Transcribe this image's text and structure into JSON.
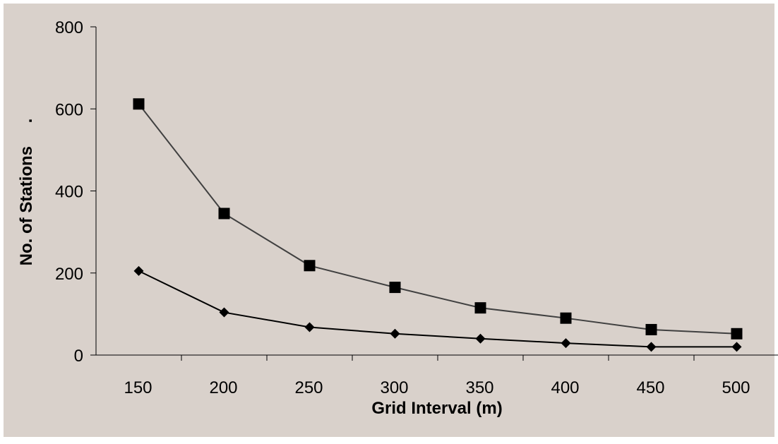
{
  "chart_data": {
    "type": "line",
    "title": "",
    "xlabel": "Grid Interval (m)",
    "ylabel": "No. of Stations",
    "ylabel_suffix": ".",
    "categories": [
      "150",
      "200",
      "250",
      "300",
      "350",
      "400",
      "450",
      "500"
    ],
    "x": [
      150,
      200,
      250,
      300,
      350,
      400,
      450,
      500
    ],
    "ylim": [
      0,
      800
    ],
    "yticks": [
      "0",
      "200",
      "400",
      "600",
      "800"
    ],
    "ytick_values": [
      0,
      200,
      400,
      600,
      800
    ],
    "grid": false,
    "legend": "none",
    "series": [
      {
        "marker": "square",
        "color": "#404040",
        "values": [
          612,
          345,
          218,
          165,
          115,
          90,
          62,
          52
        ]
      },
      {
        "marker": "diamond",
        "color": "#000000",
        "values": [
          205,
          104,
          68,
          52,
          40,
          29,
          20,
          20
        ]
      }
    ]
  },
  "colors": {
    "plot_background": "#d9d1cb",
    "axis": "#000000"
  }
}
